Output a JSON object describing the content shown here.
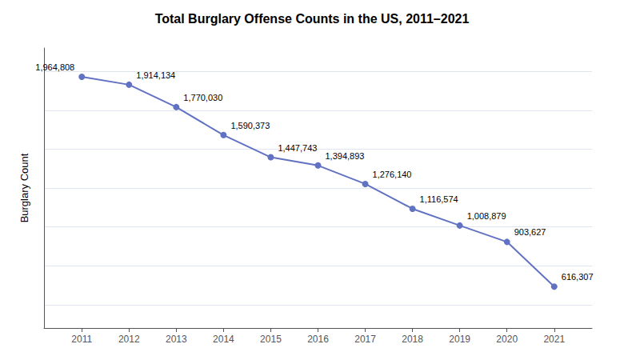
{
  "chart_data": {
    "type": "line",
    "title": "Total Burglary Offense Counts in the US, 2011–2021",
    "ylabel": "Burglary Count",
    "x": [
      2011,
      2012,
      2013,
      2014,
      2015,
      2016,
      2017,
      2018,
      2019,
      2020,
      2021
    ],
    "values": [
      1964808,
      1914134,
      1770030,
      1590373,
      1447743,
      1394893,
      1276140,
      1116574,
      1008879,
      903627,
      616307
    ],
    "value_labels": [
      "1,964,808",
      "1,914,134",
      "1,770,030",
      "1,590,373",
      "1,447,743",
      "1,394,893",
      "1,276,140",
      "1,116,574",
      "1,008,879",
      "903,627",
      "616,307"
    ],
    "data_labels": true,
    "color": "#6272c3",
    "marker": "circle",
    "xlim": [
      2010.2,
      2021.8
    ],
    "xticks": [
      2011,
      2012,
      2013,
      2014,
      2015,
      2016,
      2017,
      2018,
      2019,
      2020,
      2021
    ],
    "ylim": [
      350000,
      2150000
    ],
    "yticks": [
      500000,
      750000,
      1000000,
      1250000,
      1500000,
      1750000,
      2000000
    ],
    "grid": true,
    "tick_labels": "x"
  }
}
